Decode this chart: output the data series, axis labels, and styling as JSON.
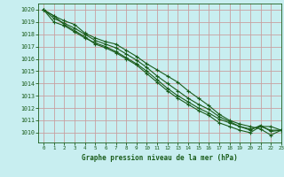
{
  "bg_color": "#c8eef0",
  "grid_color": "#c8a0a0",
  "line_color": "#1a5c1a",
  "xlabel": "Graphe pression niveau de la mer (hPa)",
  "xlim": [
    -0.5,
    23
  ],
  "ylim": [
    1009.2,
    1020.5
  ],
  "yticks": [
    1010,
    1011,
    1012,
    1013,
    1014,
    1015,
    1016,
    1017,
    1018,
    1019,
    1020
  ],
  "xticks": [
    0,
    1,
    2,
    3,
    4,
    5,
    6,
    7,
    8,
    9,
    10,
    11,
    12,
    13,
    14,
    15,
    16,
    17,
    18,
    19,
    20,
    21,
    22,
    23
  ],
  "lines": [
    [
      1020.0,
      1019.5,
      1019.1,
      1018.8,
      1018.1,
      1017.7,
      1017.4,
      1017.2,
      1016.7,
      1016.2,
      1015.6,
      1015.1,
      1014.6,
      1014.1,
      1013.4,
      1012.8,
      1012.2,
      1011.5,
      1011.0,
      1010.7,
      1010.5,
      1010.3,
      1009.8,
      1010.2
    ],
    [
      1020.0,
      1019.3,
      1018.9,
      1018.5,
      1018.0,
      1017.5,
      1017.2,
      1016.9,
      1016.4,
      1015.9,
      1015.3,
      1014.6,
      1014.0,
      1013.4,
      1012.8,
      1012.3,
      1011.9,
      1011.3,
      1010.9,
      1010.5,
      1010.3,
      1010.5,
      1010.2,
      1010.2
    ],
    [
      1020.0,
      1019.0,
      1018.7,
      1018.2,
      1017.7,
      1017.3,
      1017.0,
      1016.6,
      1016.1,
      1015.6,
      1015.0,
      1014.3,
      1013.6,
      1013.0,
      1012.5,
      1012.0,
      1011.6,
      1011.1,
      1010.8,
      1010.5,
      1010.2,
      1010.6,
      1010.1,
      1010.2
    ],
    [
      1020.0,
      1019.5,
      1018.8,
      1018.3,
      1017.8,
      1017.2,
      1016.9,
      1016.5,
      1016.0,
      1015.5,
      1014.8,
      1014.1,
      1013.4,
      1012.8,
      1012.3,
      1011.8,
      1011.4,
      1010.8,
      1010.5,
      1010.2,
      1010.0,
      1010.5,
      1010.5,
      1010.2
    ]
  ],
  "figsize": [
    3.2,
    2.0
  ],
  "dpi": 100
}
